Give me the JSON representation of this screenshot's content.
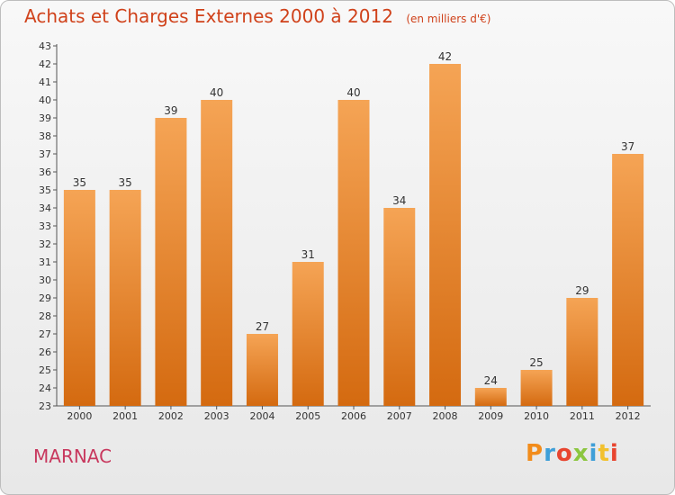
{
  "header": {
    "title": "Achats et Charges Externes 2000 à 2012",
    "subtitle": "(en milliers d'€)"
  },
  "footer": {
    "city": "MARNAC",
    "logo": "Proxiti"
  },
  "colors": {
    "title": "#d0421b",
    "bar_top": "#f5a455",
    "bar_bottom": "#d46a10",
    "city": "#c8385e"
  },
  "chart_data": {
    "type": "bar",
    "categories": [
      "2000",
      "2001",
      "2002",
      "2003",
      "2004",
      "2005",
      "2006",
      "2007",
      "2008",
      "2009",
      "2010",
      "2011",
      "2012"
    ],
    "values": [
      35,
      35,
      39,
      40,
      27,
      31,
      40,
      34,
      42,
      24,
      25,
      29,
      37
    ],
    "title": "Achats et Charges Externes 2000 à 2012",
    "subtitle": "(en milliers d'€)",
    "xlabel": "",
    "ylabel": "",
    "ylim": [
      23,
      43
    ],
    "yticks": [
      23,
      24,
      25,
      26,
      27,
      28,
      29,
      30,
      31,
      32,
      33,
      34,
      35,
      36,
      37,
      38,
      39,
      40,
      41,
      42,
      43
    ],
    "grid": false,
    "data_labels": true
  }
}
